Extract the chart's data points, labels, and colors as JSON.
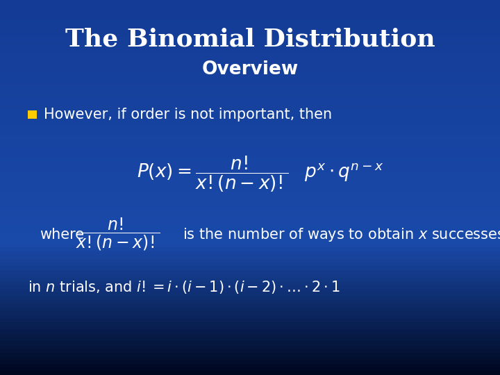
{
  "title": "The Binomial Distribution",
  "subtitle": "Overview",
  "bg_top_color": "#000820",
  "bg_mid_color": "#1a4aaa",
  "bg_bot_color": "#1a4aaa",
  "title_color": "#ffffff",
  "subtitle_color": "#ffffff",
  "text_color": "#ffffff",
  "bullet_color": "#ffcc00",
  "title_fontsize": 26,
  "subtitle_fontsize": 19,
  "body_fontsize": 15,
  "math_fontsize": 16,
  "bullet_text": "However, if order is not important, then",
  "where_rest": "is the number of ways to obtain $x$ successes"
}
